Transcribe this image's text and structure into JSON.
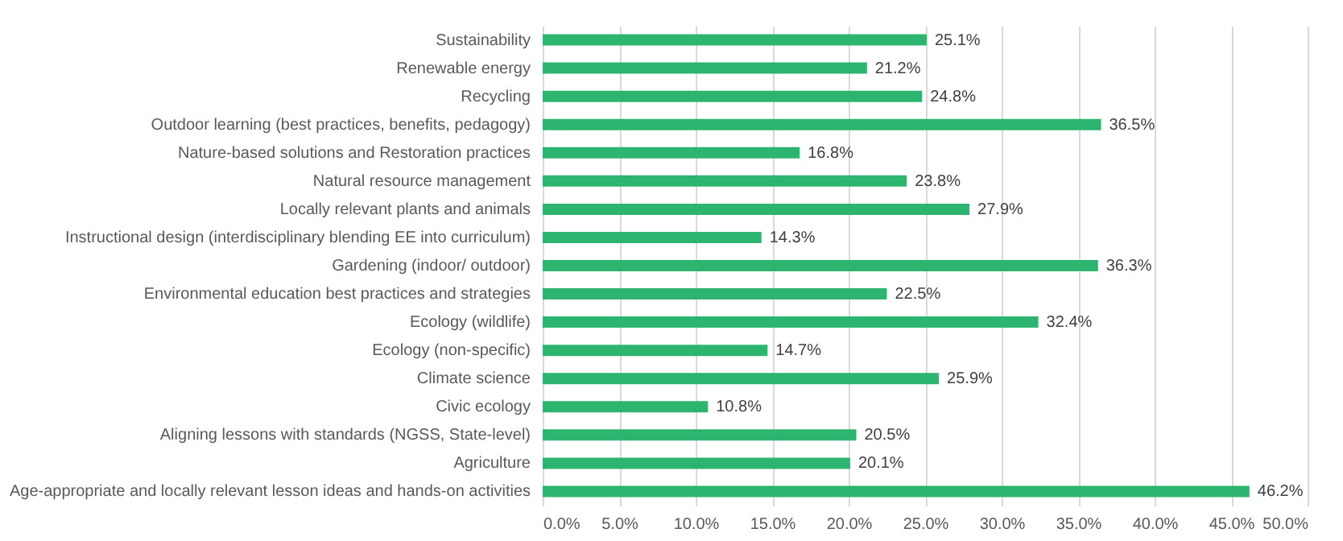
{
  "chart_data": {
    "type": "bar",
    "orientation": "horizontal",
    "categories": [
      "Sustainability",
      "Renewable energy",
      "Recycling",
      "Outdoor learning (best practices, benefits, pedagogy)",
      "Nature-based solutions and Restoration practices",
      "Natural resource management",
      "Locally relevant plants and animals",
      "Instructional design (interdisciplinary blending EE into curriculum)",
      "Gardening (indoor/ outdoor)",
      "Environmental education best practices and strategies",
      "Ecology (wildlife)",
      "Ecology (non-specific)",
      "Climate science",
      "Civic ecology",
      "Aligning lessons with standards (NGSS, State-level)",
      "Agriculture",
      "Age-appropriate and locally relevant lesson ideas and hands-on activities"
    ],
    "values": [
      25.1,
      21.2,
      24.8,
      36.5,
      16.8,
      23.8,
      27.9,
      14.3,
      36.3,
      22.5,
      32.4,
      14.7,
      25.9,
      10.8,
      20.5,
      20.1,
      46.2
    ],
    "value_labels": [
      "25.1%",
      "21.2%",
      "24.8%",
      "36.5%",
      "16.8%",
      "23.8%",
      "27.9%",
      "14.3%",
      "36.3%",
      "22.5%",
      "32.4%",
      "14.7%",
      "25.9%",
      "10.8%",
      "20.5%",
      "20.1%",
      "46.2%"
    ],
    "color": "#2db56f",
    "xlim": [
      0,
      50
    ],
    "xticks": [
      {
        "value": 0,
        "label": "0.0%"
      },
      {
        "value": 5,
        "label": "5.0%"
      },
      {
        "value": 10,
        "label": "10.0%"
      },
      {
        "value": 15,
        "label": "15.0%"
      },
      {
        "value": 20,
        "label": "20.0%"
      },
      {
        "value": 25,
        "label": "25.0%"
      },
      {
        "value": 30,
        "label": "30.0%"
      },
      {
        "value": 35,
        "label": "35.0%"
      },
      {
        "value": 40,
        "label": "40.0%"
      },
      {
        "value": 45,
        "label": "45.0%"
      },
      {
        "value": 50,
        "label": "50.0%"
      }
    ],
    "grid": "x"
  }
}
